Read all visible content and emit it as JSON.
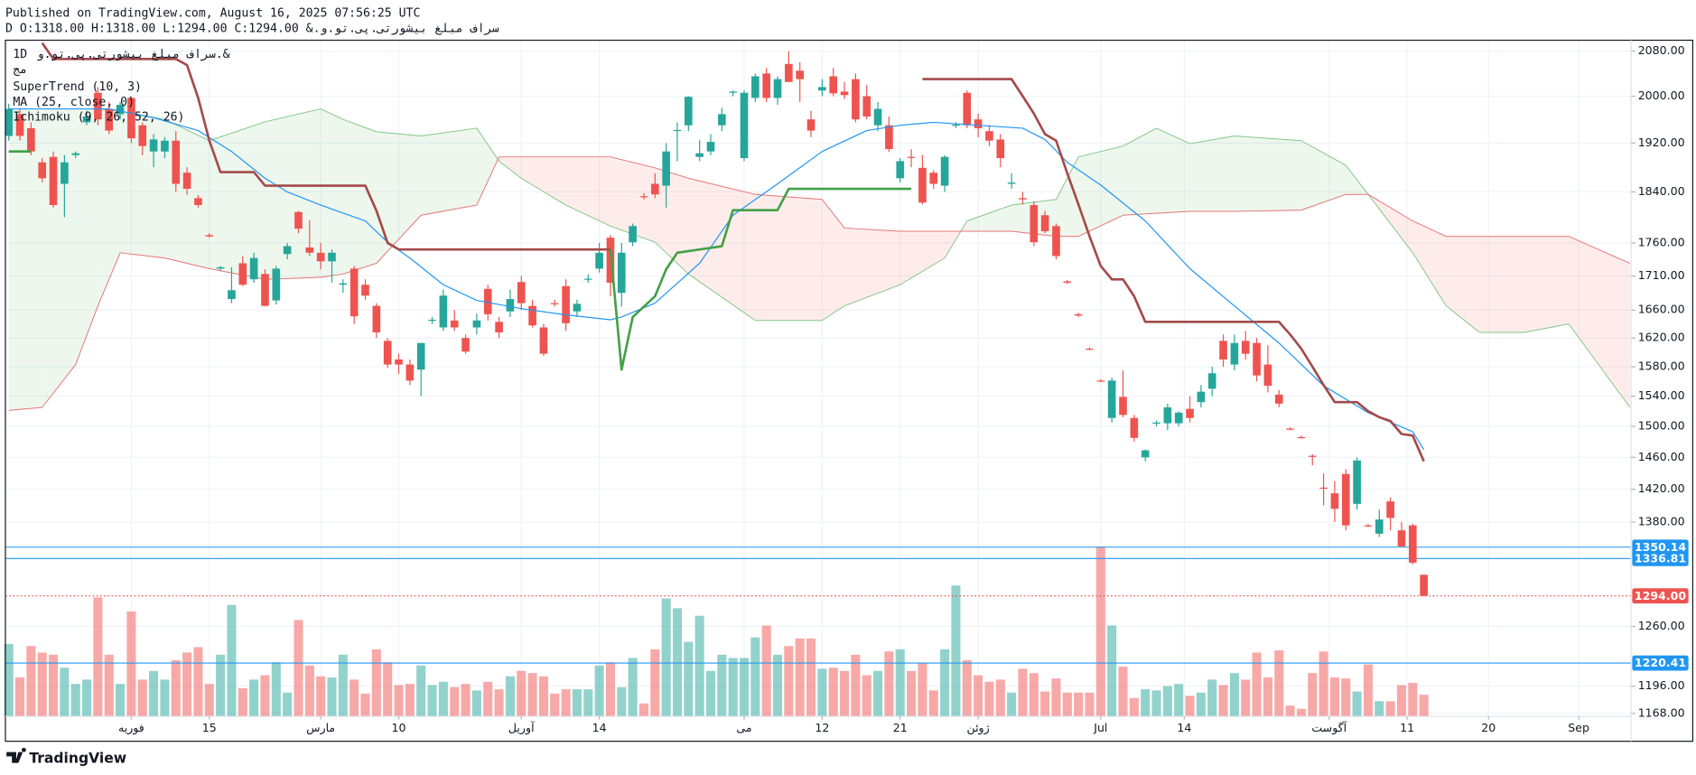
{
  "header": {
    "published": "Published on TradingView.com, August 16, 2025 07:56:25 UTC",
    "symbol_line": "سراف مبلغ بیشورتی.پی.تو.و.& D O:1318.00 H:1318.00 L:1294.00 C:1294.00"
  },
  "footer": {
    "brand": "TradingView"
  },
  "chart_data": {
    "type": "candlestick",
    "legend": {
      "interval": "1D",
      "symbol": "سراف مبلغ بیشورتی.پی.تو.و.&",
      "exchange": "مج",
      "indicators": [
        "SuperTrend (10, 3)",
        "MA (25, close, 0)",
        "Ichimoku (9, 26, 52, 26)"
      ]
    },
    "up_color": "#26a69a",
    "down_color": "#ef5350",
    "log_scale": true,
    "grid": true,
    "ylim": [
      1165,
      2100
    ],
    "yticks": [
      {
        "value": 2080,
        "label": "2080.00"
      },
      {
        "value": 2000,
        "label": "2000.00"
      },
      {
        "value": 1920,
        "label": "1920.00"
      },
      {
        "value": 1840,
        "label": "1840.00"
      },
      {
        "value": 1760,
        "label": "1760.00"
      },
      {
        "value": 1710,
        "label": "1710.00"
      },
      {
        "value": 1660,
        "label": "1660.00"
      },
      {
        "value": 1620,
        "label": "1620.00"
      },
      {
        "value": 1580,
        "label": "1580.00"
      },
      {
        "value": 1540,
        "label": "1540.00"
      },
      {
        "value": 1500,
        "label": "1500.00"
      },
      {
        "value": 1460,
        "label": "1460.00"
      },
      {
        "value": 1420,
        "label": "1420.00"
      },
      {
        "value": 1380,
        "label": "1380.00"
      },
      {
        "value": 1260,
        "label": "1260.00"
      },
      {
        "value": 1196,
        "label": "1196.00"
      },
      {
        "value": 1168,
        "label": "1168.00"
      }
    ],
    "xlim": [
      -0.3,
      145.6
    ],
    "xticks": [
      {
        "value": 11,
        "label": "فوریه"
      },
      {
        "value": 18,
        "label": "15"
      },
      {
        "value": 28,
        "label": "مارس"
      },
      {
        "value": 35,
        "label": "10"
      },
      {
        "value": 46,
        "label": "آوریل"
      },
      {
        "value": 53,
        "label": "14"
      },
      {
        "value": 66,
        "label": "می"
      },
      {
        "value": 73,
        "label": "12"
      },
      {
        "value": 80,
        "label": "21"
      },
      {
        "value": 87,
        "label": "ژوئن"
      },
      {
        "value": 98,
        "label": "Jul"
      },
      {
        "value": 105.5,
        "label": "14"
      },
      {
        "value": 118.5,
        "label": "آگوست"
      },
      {
        "value": 125.5,
        "label": "11"
      },
      {
        "value": 132.8,
        "label": "20"
      },
      {
        "value": 140.9,
        "label": "Sep"
      }
    ],
    "ohlc": [
      [
        1932,
        1987,
        1924,
        1978
      ],
      [
        1969,
        1978,
        1924,
        1932
      ],
      [
        1945,
        1955,
        1900,
        1906
      ],
      [
        1888,
        1895,
        1855,
        1862
      ],
      [
        1897,
        1906,
        1815,
        1819
      ],
      [
        1853,
        1900,
        1800,
        1888
      ],
      [
        1900,
        1906,
        1895,
        1903
      ],
      [
        1955,
        1975,
        1950,
        1965
      ],
      [
        2006,
        2016,
        1950,
        1960
      ],
      [
        1978,
        1990,
        1935,
        1941
      ],
      [
        1969,
        1990,
        1960,
        1985
      ],
      [
        1997,
        2000,
        1920,
        1928
      ],
      [
        1950,
        1955,
        1900,
        1915
      ],
      [
        1906,
        1935,
        1880,
        1926
      ],
      [
        1906,
        1930,
        1895,
        1924
      ],
      [
        1924,
        1940,
        1840,
        1853
      ],
      [
        1871,
        1880,
        1835,
        1845
      ],
      [
        1830,
        1835,
        1815,
        1819
      ],
      [
        1772,
        1775,
        1768,
        1770
      ],
      [
        1721,
        1725,
        1718,
        1723
      ],
      [
        1676,
        1723,
        1670,
        1689
      ],
      [
        1729,
        1740,
        1695,
        1697
      ],
      [
        1705,
        1745,
        1700,
        1737
      ],
      [
        1713,
        1720,
        1665,
        1666
      ],
      [
        1674,
        1725,
        1668,
        1721
      ],
      [
        1743,
        1760,
        1735,
        1755
      ],
      [
        1808,
        1810,
        1775,
        1782
      ],
      [
        1753,
        1795,
        1740,
        1745
      ],
      [
        1745,
        1760,
        1720,
        1732
      ],
      [
        1732,
        1750,
        1700,
        1745
      ],
      [
        1697,
        1705,
        1685,
        1699
      ],
      [
        1721,
        1725,
        1640,
        1651
      ],
      [
        1697,
        1705,
        1675,
        1681
      ],
      [
        1666,
        1670,
        1620,
        1628
      ],
      [
        1616,
        1620,
        1578,
        1583
      ],
      [
        1590,
        1598,
        1570,
        1583
      ],
      [
        1583,
        1590,
        1555,
        1561
      ],
      [
        1576,
        1613,
        1540,
        1613
      ],
      [
        1645,
        1650,
        1640,
        1646
      ],
      [
        1635,
        1690,
        1630,
        1681
      ],
      [
        1645,
        1660,
        1630,
        1635
      ],
      [
        1620,
        1625,
        1598,
        1601
      ],
      [
        1635,
        1655,
        1625,
        1645
      ],
      [
        1691,
        1697,
        1645,
        1654
      ],
      [
        1643,
        1650,
        1620,
        1628
      ],
      [
        1658,
        1690,
        1650,
        1676
      ],
      [
        1701,
        1710,
        1660,
        1670
      ],
      [
        1666,
        1675,
        1635,
        1638
      ],
      [
        1635,
        1640,
        1595,
        1598
      ],
      [
        1670,
        1675,
        1665,
        1669
      ],
      [
        1695,
        1705,
        1630,
        1641
      ],
      [
        1658,
        1675,
        1650,
        1669
      ],
      [
        1705,
        1712,
        1700,
        1706
      ],
      [
        1721,
        1760,
        1715,
        1745
      ],
      [
        1768,
        1772,
        1680,
        1700
      ],
      [
        1685,
        1760,
        1665,
        1745
      ],
      [
        1761,
        1790,
        1755,
        1786
      ],
      [
        1833,
        1838,
        1828,
        1832
      ],
      [
        1853,
        1870,
        1830,
        1836
      ],
      [
        1850,
        1920,
        1815,
        1906
      ],
      [
        1941,
        1955,
        1890,
        1942
      ],
      [
        1950,
        2000,
        1940,
        1999
      ],
      [
        1897,
        1925,
        1890,
        1903
      ],
      [
        1906,
        1935,
        1900,
        1922
      ],
      [
        1950,
        1980,
        1940,
        1969
      ],
      [
        2006,
        2010,
        2000,
        2008
      ],
      [
        1895,
        2010,
        1890,
        2006
      ],
      [
        1997,
        2040,
        1990,
        2035
      ],
      [
        2040,
        2050,
        1990,
        1997
      ],
      [
        1997,
        2035,
        1985,
        2030
      ],
      [
        2057,
        2080,
        2025,
        2025
      ],
      [
        2045,
        2060,
        1990,
        2030
      ],
      [
        1960,
        1975,
        1930,
        1941
      ],
      [
        2010,
        2030,
        2000,
        2016
      ],
      [
        2035,
        2050,
        2000,
        2005
      ],
      [
        2008,
        2025,
        1995,
        2002
      ],
      [
        2030,
        2040,
        1955,
        1960
      ],
      [
        2000,
        2020,
        1960,
        1965
      ],
      [
        1950,
        1990,
        1940,
        1978
      ],
      [
        1950,
        1965,
        1905,
        1910
      ],
      [
        1862,
        1895,
        1855,
        1890
      ],
      [
        1897,
        1910,
        1880,
        1896
      ],
      [
        1879,
        1900,
        1820,
        1823
      ],
      [
        1871,
        1875,
        1845,
        1853
      ],
      [
        1850,
        1900,
        1840,
        1897
      ],
      [
        1950,
        1955,
        1945,
        1951
      ],
      [
        2006,
        2010,
        1945,
        1950
      ],
      [
        1960,
        1970,
        1930,
        1945
      ],
      [
        1940,
        1950,
        1915,
        1924
      ],
      [
        1926,
        1935,
        1880,
        1895
      ],
      [
        1853,
        1870,
        1845,
        1855
      ],
      [
        1830,
        1840,
        1820,
        1828
      ],
      [
        1819,
        1825,
        1755,
        1761
      ],
      [
        1803,
        1810,
        1775,
        1778
      ],
      [
        1786,
        1790,
        1735,
        1740
      ],
      [
        1702,
        1704,
        1698,
        1700
      ],
      [
        1654,
        1656,
        1650,
        1652
      ],
      [
        1605,
        1607,
        1603,
        1604
      ],
      [
        1561,
        1563,
        1559,
        1560
      ],
      [
        1511,
        1565,
        1505,
        1561
      ],
      [
        1539,
        1575,
        1512,
        1515
      ],
      [
        1511,
        1515,
        1480,
        1485
      ],
      [
        1460,
        1470,
        1455,
        1469
      ],
      [
        1504,
        1508,
        1500,
        1505
      ],
      [
        1504,
        1530,
        1495,
        1525
      ],
      [
        1504,
        1520,
        1500,
        1518
      ],
      [
        1523,
        1540,
        1505,
        1511
      ],
      [
        1532,
        1555,
        1525,
        1546
      ],
      [
        1550,
        1580,
        1540,
        1571
      ],
      [
        1616,
        1625,
        1580,
        1590
      ],
      [
        1583,
        1625,
        1575,
        1613
      ],
      [
        1616,
        1630,
        1590,
        1598
      ],
      [
        1613,
        1620,
        1560,
        1568
      ],
      [
        1583,
        1610,
        1545,
        1554
      ],
      [
        1542,
        1548,
        1525,
        1530
      ],
      [
        1497,
        1499,
        1495,
        1496
      ],
      [
        1486,
        1488,
        1484,
        1485
      ],
      [
        1462,
        1464,
        1450,
        1461
      ],
      [
        1422,
        1440,
        1400,
        1421
      ],
      [
        1415,
        1430,
        1380,
        1396
      ],
      [
        1439,
        1445,
        1370,
        1376
      ],
      [
        1402,
        1460,
        1395,
        1456
      ],
      [
        1376,
        1378,
        1374,
        1375
      ],
      [
        1366,
        1395,
        1362,
        1383
      ],
      [
        1405,
        1410,
        1370,
        1385
      ],
      [
        1370,
        1380,
        1350,
        1351
      ],
      [
        1376,
        1378,
        1330,
        1332
      ],
      [
        1318,
        1318,
        1294,
        1294
      ]
    ],
    "volume": [
      67,
      36,
      65,
      59,
      57,
      45,
      30,
      34,
      110,
      57,
      30,
      97,
      34,
      42,
      34,
      52,
      59,
      64,
      30,
      57,
      103,
      26,
      34,
      38,
      50,
      22,
      89,
      47,
      37,
      36,
      57,
      34,
      21,
      62,
      50,
      29,
      30,
      47,
      29,
      32,
      27,
      30,
      24,
      32,
      25,
      37,
      42,
      40,
      37,
      21,
      25,
      25,
      25,
      47,
      50,
      27,
      54,
      12,
      62,
      109,
      100,
      69,
      93,
      42,
      57,
      54,
      54,
      73,
      84,
      57,
      65,
      72,
      72,
      44,
      45,
      42,
      57,
      38,
      42,
      60,
      62,
      42,
      49,
      24,
      62,
      121,
      52,
      38,
      32,
      34,
      22,
      44,
      40,
      23,
      35,
      22,
      22,
      22,
      157,
      84,
      46,
      17,
      25,
      24,
      28,
      30,
      19,
      22,
      34,
      29,
      40,
      34,
      59,
      36,
      61,
      10,
      7,
      40,
      60,
      36,
      35,
      23,
      48,
      14,
      14,
      29,
      31,
      20
    ],
    "supertrend": {
      "down": {
        "color": "#a34a4a",
        "x": [
          3,
          4,
          15,
          16,
          17,
          18,
          19,
          22,
          23,
          32,
          33,
          34,
          35,
          54,
          60,
          82,
          90,
          91,
          92,
          93,
          94,
          95,
          96,
          97,
          98,
          99,
          100,
          101,
          102,
          114,
          115,
          116,
          117,
          118,
          119,
          121,
          122,
          123,
          124,
          125,
          126,
          127
        ],
        "values": [
          2095,
          2066,
          2066,
          2055,
          1997,
          1924,
          1872,
          1872,
          1850,
          1850,
          1810,
          1760,
          1750,
          1750,
          null,
          2030,
          2030,
          2000,
          1970,
          1935,
          1924,
          1870,
          1820,
          1770,
          1725,
          1705,
          1705,
          1680,
          1643,
          1643,
          1625,
          1605,
          1580,
          1555,
          1532,
          1532,
          1520,
          1512,
          1507,
          1490,
          1488,
          1455
        ]
      },
      "up": {
        "color": "#43a047",
        "x": [
          0,
          2,
          30,
          54,
          55,
          56,
          57,
          58,
          59,
          60,
          64,
          65,
          69,
          70,
          81
        ],
        "values": [
          1906,
          1906,
          null,
          1750,
          1576,
          1650,
          1665,
          1680,
          1720,
          1745,
          1755,
          1811,
          1811,
          1845,
          1845
        ]
      }
    },
    "ma": {
      "color": "#2196f3",
      "x": [
        0,
        9,
        13,
        17,
        20,
        23,
        25,
        28,
        32,
        34,
        36,
        39,
        42,
        46,
        50,
        54,
        55,
        58,
        62,
        65,
        69,
        73,
        77,
        80,
        83,
        87,
        91,
        93,
        95,
        98,
        102,
        106,
        110,
        114,
        118,
        122,
        126,
        127
      ],
      "values": [
        1978,
        1978,
        1963,
        1941,
        1906,
        1862,
        1840,
        1819,
        1794,
        1761,
        1737,
        1697,
        1674,
        1662,
        1653,
        1646,
        1650,
        1670,
        1729,
        1803,
        1853,
        1906,
        1941,
        1950,
        1955,
        1950,
        1945,
        1926,
        1888,
        1851,
        1794,
        1721,
        1666,
        1613,
        1554,
        1518,
        1493,
        1470
      ]
    },
    "ichimoku": {
      "color_a": "#81c784",
      "color_b": "#e57373",
      "fill_up": "rgba(76,175,80,0.10)",
      "fill_down": "rgba(244,67,54,0.10)",
      "x": [
        0,
        3,
        6,
        8,
        10,
        14,
        18,
        23,
        28,
        30,
        33,
        37,
        42,
        44,
        46,
        50,
        54,
        58,
        61,
        67,
        73,
        75,
        80,
        84,
        86,
        90,
        94,
        96,
        100,
        103,
        106,
        110,
        116,
        120,
        122,
        126,
        129,
        132,
        136,
        140,
        145.5
      ],
      "span_a": [
        1978,
        1978,
        1978,
        1978,
        1974,
        1960,
        1924,
        1956,
        1978,
        1960,
        1939,
        1932,
        1945,
        1890,
        1862,
        1819,
        1786,
        1761,
        1713,
        1645,
        1645,
        1666,
        1697,
        1737,
        1794,
        1819,
        1828,
        1897,
        1915,
        1945,
        1919,
        1932,
        1924,
        1883,
        1836,
        1745,
        1666,
        1628,
        1628,
        1640,
        1525
      ],
      "span_b": [
        1521,
        1525,
        1583,
        1666,
        1745,
        1737,
        1721,
        1705,
        1708,
        1713,
        1729,
        1803,
        1819,
        1897,
        1897,
        1897,
        1897,
        1879,
        1862,
        1836,
        1828,
        1783,
        1778,
        1778,
        1778,
        1778,
        1770,
        1770,
        1803,
        1806,
        1809,
        1809,
        1811,
        1836,
        1836,
        1794,
        1770,
        1770,
        1770,
        1770,
        1729
      ]
    },
    "price_lines": [
      {
        "value": 1350.14,
        "color": "#2196f3",
        "style": "solid"
      },
      {
        "value": 1336.81,
        "color": "#2196f3",
        "style": "solid"
      },
      {
        "value": 1294,
        "label": "1294.00",
        "color": "#ef5350",
        "style": "dotted"
      },
      {
        "value": 1220.41,
        "color": "#2196f3",
        "style": "solid"
      }
    ]
  }
}
